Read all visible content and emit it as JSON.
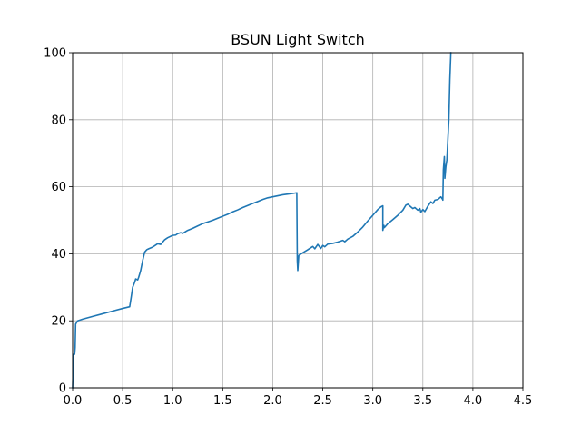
{
  "chart_data": {
    "type": "line",
    "title": "BSUN Light Switch",
    "xlabel": "",
    "ylabel": "",
    "xlim": [
      0,
      4.5
    ],
    "ylim": [
      0,
      100
    ],
    "xticks": [
      0.0,
      0.5,
      1.0,
      1.5,
      2.0,
      2.5,
      3.0,
      3.5,
      4.0,
      4.5
    ],
    "xtick_labels": [
      "0.0",
      "0.5",
      "1.0",
      "1.5",
      "2.0",
      "2.5",
      "3.0",
      "3.5",
      "4.0",
      "4.5"
    ],
    "yticks": [
      0,
      20,
      40,
      60,
      80,
      100
    ],
    "ytick_labels": [
      "0",
      "20",
      "40",
      "60",
      "80",
      "100"
    ],
    "grid": true,
    "legend": false,
    "series": [
      {
        "color": "#1f77b4",
        "x": [
          0.0,
          0.01,
          0.02,
          0.025,
          0.03,
          0.05,
          0.1,
          0.2,
          0.3,
          0.4,
          0.5,
          0.57,
          0.585,
          0.6,
          0.62,
          0.63,
          0.65,
          0.66,
          0.68,
          0.7,
          0.72,
          0.74,
          0.76,
          0.8,
          0.85,
          0.88,
          0.9,
          0.92,
          0.95,
          1.0,
          1.03,
          1.05,
          1.08,
          1.1,
          1.15,
          1.2,
          1.25,
          1.3,
          1.35,
          1.4,
          1.45,
          1.5,
          1.55,
          1.6,
          1.65,
          1.7,
          1.75,
          1.8,
          1.85,
          1.9,
          1.95,
          2.0,
          2.05,
          2.1,
          2.15,
          2.2,
          2.24,
          2.245,
          2.25,
          2.26,
          2.3,
          2.35,
          2.4,
          2.42,
          2.45,
          2.48,
          2.5,
          2.52,
          2.55,
          2.6,
          2.65,
          2.7,
          2.72,
          2.75,
          2.8,
          2.85,
          2.9,
          2.95,
          3.0,
          3.05,
          3.08,
          3.1,
          3.1,
          3.11,
          3.115,
          3.15,
          3.2,
          3.25,
          3.3,
          3.33,
          3.35,
          3.38,
          3.4,
          3.42,
          3.45,
          3.47,
          3.48,
          3.5,
          3.52,
          3.55,
          3.58,
          3.6,
          3.62,
          3.65,
          3.68,
          3.7,
          3.7,
          3.705,
          3.715,
          3.72,
          3.73,
          3.74,
          3.75,
          3.76,
          3.77,
          3.78
        ],
        "values": [
          0,
          10,
          10,
          12,
          19,
          20,
          20.5,
          21.3,
          22.1,
          22.9,
          23.7,
          24.2,
          27,
          30,
          31.5,
          32.5,
          32.2,
          33,
          35,
          38,
          40.5,
          41.2,
          41.5,
          42,
          43,
          42.8,
          43.5,
          44.2,
          44.8,
          45.5,
          45.6,
          46,
          46.3,
          46.1,
          47,
          47.6,
          48.3,
          49,
          49.5,
          50,
          50.6,
          51.2,
          51.8,
          52.5,
          53.1,
          53.8,
          54.4,
          55,
          55.6,
          56.2,
          56.7,
          57,
          57.3,
          57.6,
          57.8,
          58,
          58.2,
          38,
          35,
          39.5,
          40.3,
          41.2,
          42.2,
          41.5,
          42.8,
          41.6,
          42.5,
          42.1,
          42.9,
          43.1,
          43.5,
          44,
          43.6,
          44.4,
          45.2,
          46.5,
          48,
          49.8,
          51.5,
          53.2,
          54,
          54.3,
          47,
          48.5,
          47.8,
          49,
          50.2,
          51.5,
          53,
          54.5,
          54.8,
          54,
          53.5,
          53.8,
          53,
          53.5,
          52.4,
          53.2,
          52.6,
          54.2,
          55.5,
          55,
          56,
          56.2,
          57,
          56.1,
          56,
          65,
          69,
          62.5,
          66,
          68,
          74,
          80,
          92,
          100
        ]
      }
    ]
  }
}
